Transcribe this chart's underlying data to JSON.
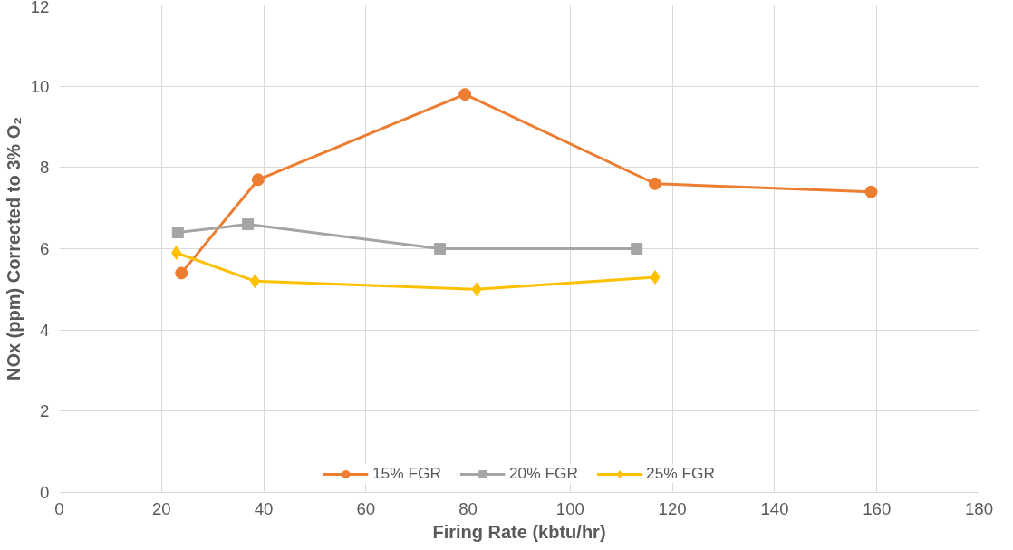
{
  "chart_data": {
    "type": "line",
    "xlabel": "Firing Rate (kbtu/hr)",
    "ylabel": "NOx (ppm) Corrected to 3% O₂",
    "xlim": [
      0,
      180
    ],
    "xticks": [
      0,
      20,
      40,
      60,
      80,
      100,
      120,
      140,
      160,
      180
    ],
    "ylim": [
      0,
      12
    ],
    "yticks": [
      0,
      2,
      4,
      6,
      8,
      10,
      12
    ],
    "grid": true,
    "legend": "bottom",
    "line_style": "solid",
    "series": [
      {
        "name": "15% FGR",
        "color": "#ed7d31",
        "marker": "circle",
        "x": [
          23.9,
          38.9,
          79.4,
          116.6,
          158.9
        ],
        "values": [
          5.4,
          7.7,
          9.8,
          7.6,
          7.4
        ]
      },
      {
        "name": "20% FGR",
        "color": "#a5a5a5",
        "marker": "square",
        "x": [
          23.2,
          36.9,
          74.5,
          113.0
        ],
        "values": [
          6.4,
          6.6,
          6.0,
          6.0
        ]
      },
      {
        "name": "25% FGR",
        "color": "#ffc000",
        "marker": "diamond",
        "x": [
          22.9,
          38.3,
          81.7,
          116.6
        ],
        "values": [
          5.9,
          5.2,
          5.0,
          5.3
        ]
      }
    ]
  }
}
